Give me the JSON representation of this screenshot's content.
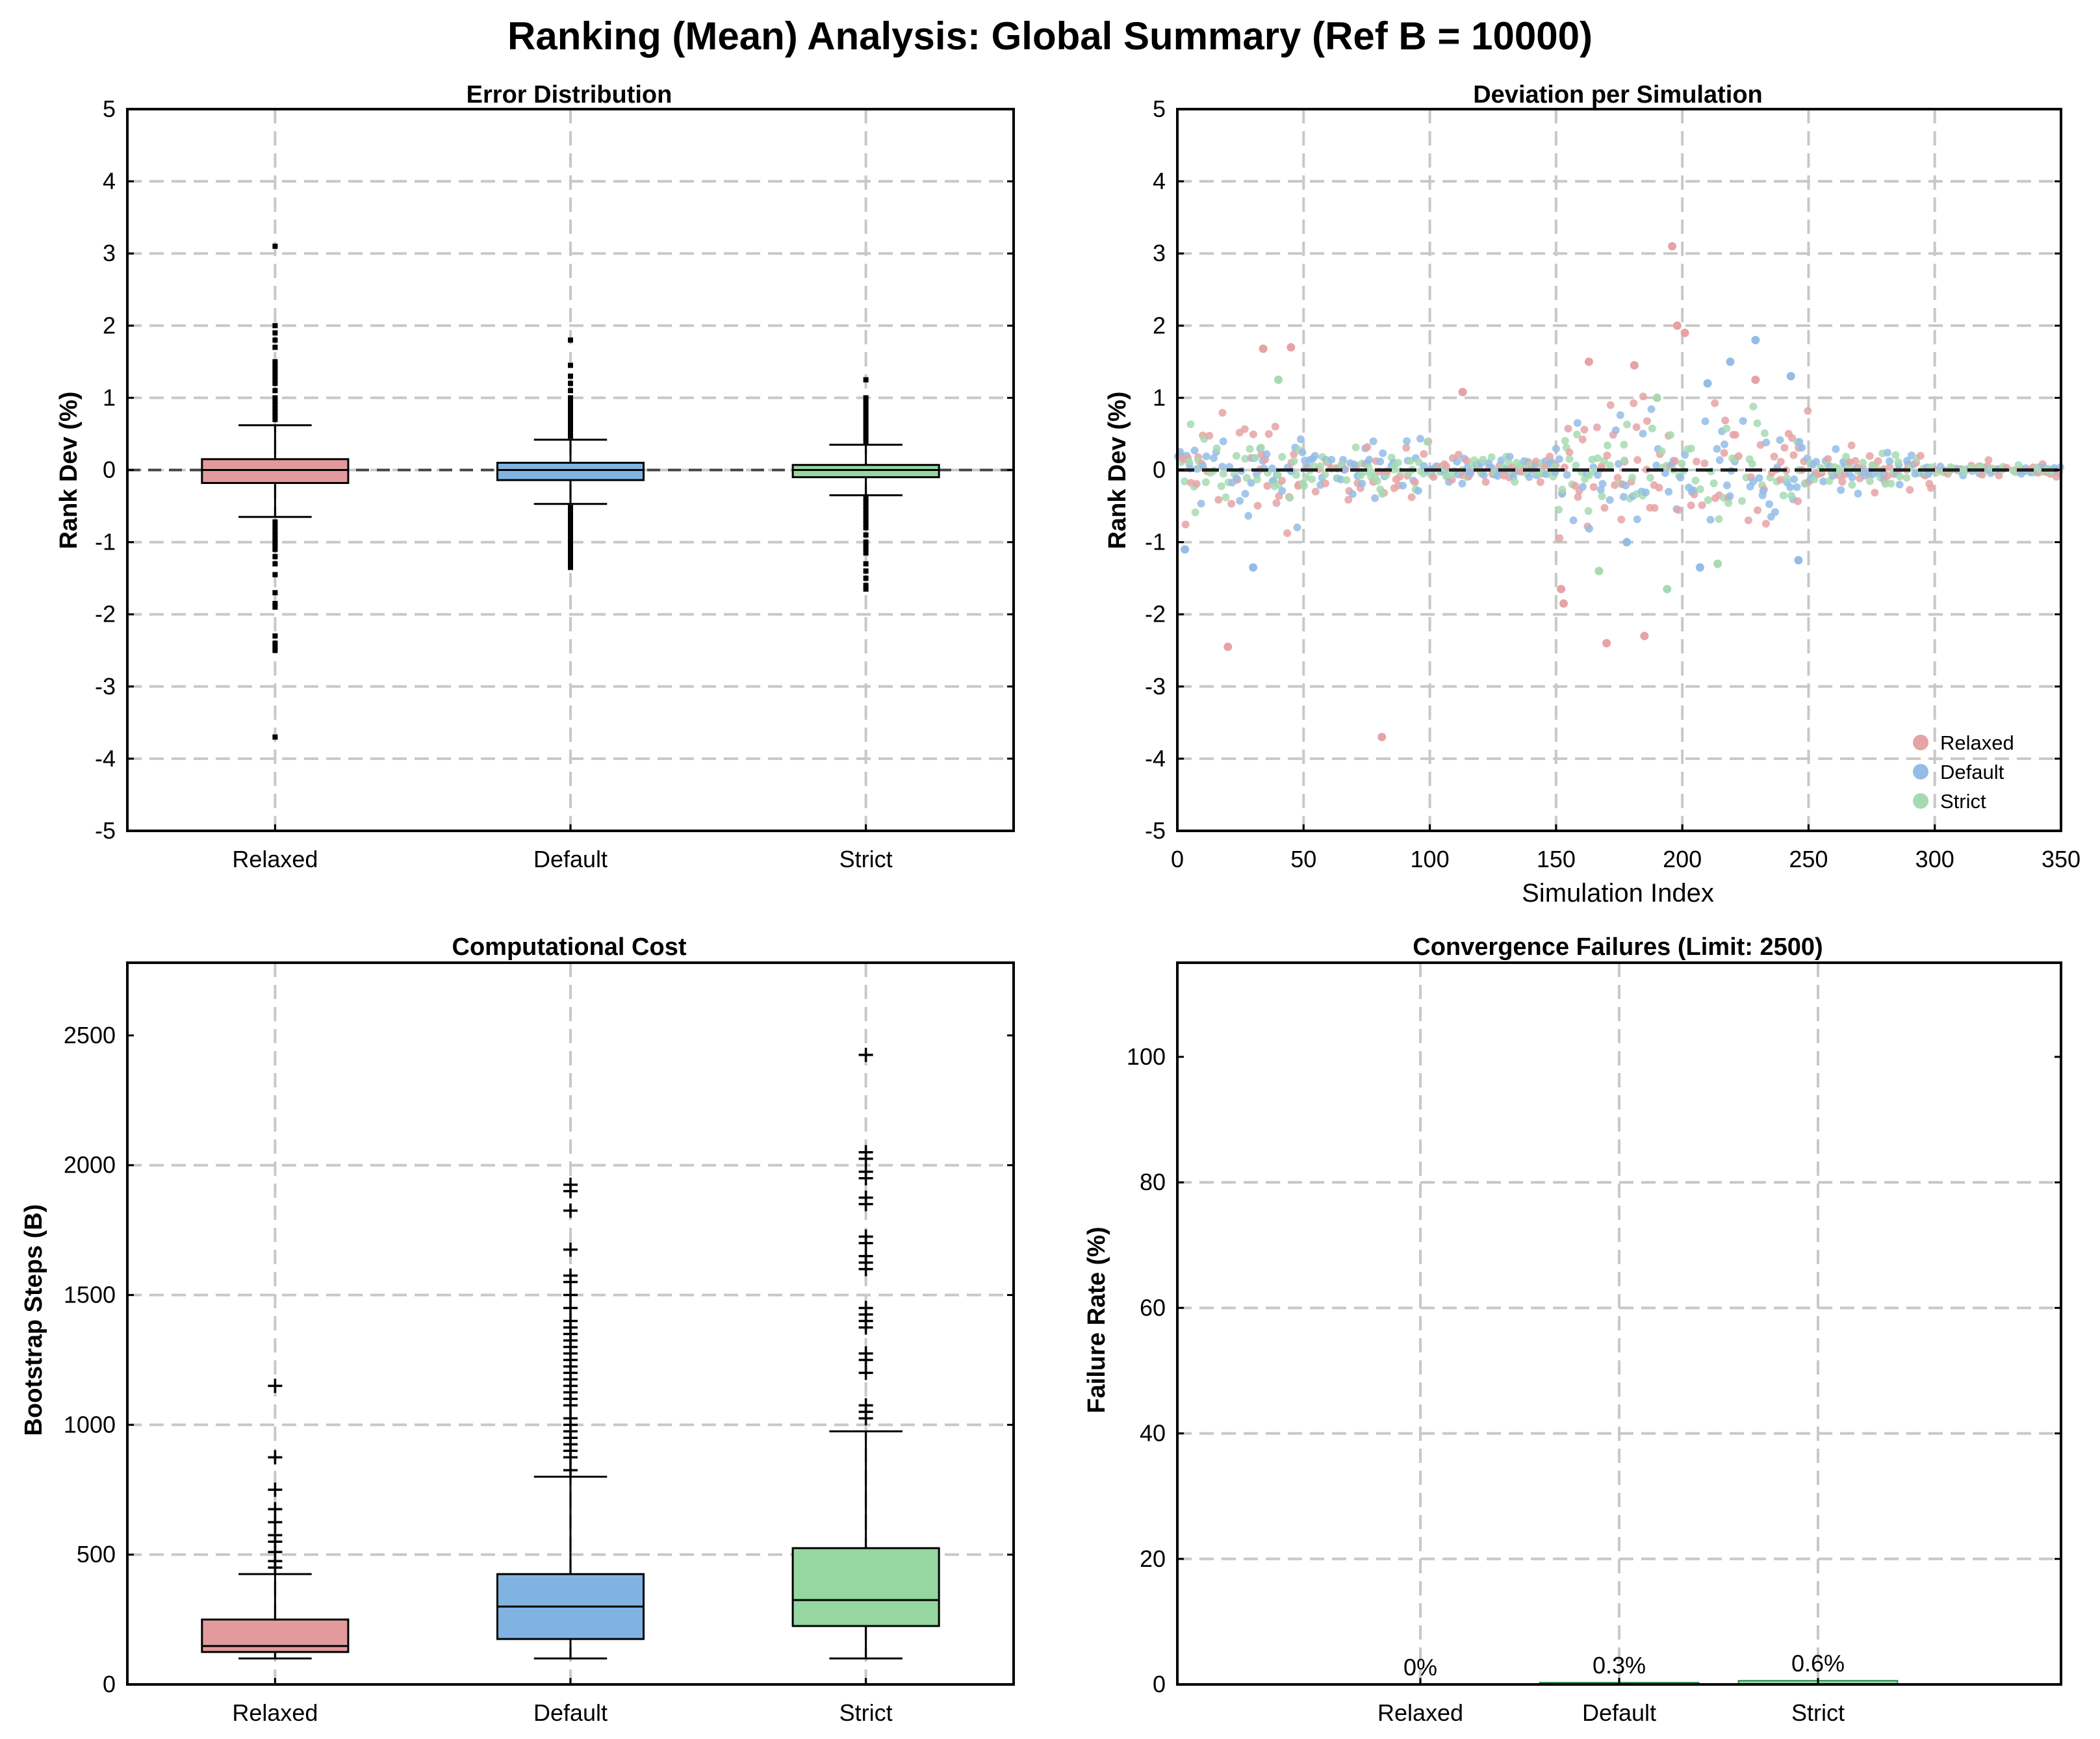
{
  "figure": {
    "title": "Ranking (Mean) Analysis: Global Summary (Ref B = 10000)",
    "colors": {
      "Relaxed": "#e39a9c",
      "Default": "#80b3e2",
      "Strict": "#96d6a0",
      "Relaxed_point": "#e6a3a4",
      "Default_point": "#93bde6",
      "Strict_point": "#a7dab1"
    }
  },
  "chart_data": [
    {
      "id": "error",
      "type": "box",
      "title": "Error Distribution",
      "xlabel": "",
      "ylabel": "Rank Dev (%)",
      "ylim": [
        -5,
        5
      ],
      "yticks": [
        -5,
        -4,
        -3,
        -2,
        -1,
        0,
        1,
        2,
        3,
        4,
        5
      ],
      "categories": [
        "Relaxed",
        "Default",
        "Strict"
      ],
      "reference_line": 0,
      "boxes": [
        {
          "name": "Relaxed",
          "q1": -0.18,
          "median": 0.0,
          "q3": 0.15,
          "whisker_low": -0.65,
          "whisker_high": 0.62,
          "outliers": [
            3.1,
            2.0,
            1.9,
            1.8,
            1.7,
            1.5,
            1.45,
            1.4,
            1.35,
            1.3,
            1.25,
            1.2,
            1.1,
            1.0,
            0.95,
            0.9,
            0.85,
            0.8,
            0.75,
            0.7,
            -0.72,
            -0.78,
            -0.85,
            -0.9,
            -0.95,
            -1.0,
            -1.05,
            -1.1,
            -1.2,
            -1.3,
            -1.45,
            -1.7,
            -1.85,
            -1.9,
            -2.3,
            -2.4,
            -2.45,
            -2.5,
            -3.7
          ]
        },
        {
          "name": "Default",
          "q1": -0.14,
          "median": 0.0,
          "q3": 0.1,
          "whisker_low": -0.47,
          "whisker_high": 0.42,
          "outliers": [
            1.8,
            1.45,
            1.3,
            1.2,
            1.1,
            1.0,
            0.95,
            0.9,
            0.85,
            0.8,
            0.75,
            0.7,
            0.65,
            0.6,
            0.55,
            0.5,
            0.47,
            -0.52,
            -0.55,
            -0.6,
            -0.65,
            -0.7,
            -0.75,
            -0.8,
            -0.85,
            -0.9,
            -0.95,
            -1.0,
            -1.05,
            -1.1,
            -1.15,
            -1.2,
            -1.25,
            -1.3,
            -1.35
          ]
        },
        {
          "name": "Strict",
          "q1": -0.1,
          "median": 0.0,
          "q3": 0.07,
          "whisker_low": -0.35,
          "whisker_high": 0.35,
          "outliers": [
            1.25,
            1.0,
            0.95,
            0.9,
            0.85,
            0.8,
            0.75,
            0.7,
            0.65,
            0.6,
            0.55,
            0.5,
            0.45,
            0.4,
            -0.4,
            -0.45,
            -0.5,
            -0.55,
            -0.6,
            -0.65,
            -0.7,
            -0.75,
            -0.8,
            -0.9,
            -1.0,
            -1.05,
            -1.1,
            -1.15,
            -1.3,
            -1.4,
            -1.5,
            -1.6,
            -1.65
          ]
        }
      ]
    },
    {
      "id": "deviation",
      "type": "scatter",
      "title": "Deviation per Simulation",
      "xlabel": "Simulation Index",
      "ylabel": "Rank Dev (%)",
      "xlim": [
        0,
        350
      ],
      "ylim": [
        -5,
        5
      ],
      "xticks": [
        0,
        50,
        100,
        150,
        200,
        250,
        300,
        350
      ],
      "yticks": [
        -5,
        -4,
        -3,
        -2,
        -1,
        0,
        1,
        2,
        3,
        4,
        5
      ],
      "reference_line": 0,
      "legend": [
        "Relaxed",
        "Default",
        "Strict"
      ],
      "legend_position": "bottom-right",
      "highlighted_points": [
        {
          "series": "Relaxed",
          "x": 196,
          "y": 3.1
        },
        {
          "series": "Relaxed",
          "x": 81,
          "y": -3.7
        },
        {
          "series": "Relaxed",
          "x": 20,
          "y": -2.45
        },
        {
          "series": "Relaxed",
          "x": 45,
          "y": 1.7
        },
        {
          "series": "Relaxed",
          "x": 34,
          "y": 1.68
        },
        {
          "series": "Relaxed",
          "x": 198,
          "y": 2.0
        },
        {
          "series": "Relaxed",
          "x": 201,
          "y": 1.9
        },
        {
          "series": "Relaxed",
          "x": 170,
          "y": -2.4
        },
        {
          "series": "Relaxed",
          "x": 185,
          "y": -2.3
        },
        {
          "series": "Relaxed",
          "x": 152,
          "y": -1.65
        },
        {
          "series": "Relaxed",
          "x": 153,
          "y": -1.85
        },
        {
          "series": "Relaxed",
          "x": 163,
          "y": 1.5
        },
        {
          "series": "Relaxed",
          "x": 181,
          "y": 1.45
        },
        {
          "series": "Relaxed",
          "x": 229,
          "y": 1.25
        },
        {
          "series": "Relaxed",
          "x": 113,
          "y": 1.08
        },
        {
          "series": "Default",
          "x": 229,
          "y": 1.8
        },
        {
          "series": "Default",
          "x": 219,
          "y": 1.5
        },
        {
          "series": "Default",
          "x": 210,
          "y": 1.2
        },
        {
          "series": "Default",
          "x": 243,
          "y": 1.3
        },
        {
          "series": "Default",
          "x": 30,
          "y": -1.35
        },
        {
          "series": "Default",
          "x": 3,
          "y": -1.1
        },
        {
          "series": "Default",
          "x": 207,
          "y": -1.35
        },
        {
          "series": "Default",
          "x": 178,
          "y": -1.0
        },
        {
          "series": "Default",
          "x": 246,
          "y": -1.25
        },
        {
          "series": "Strict",
          "x": 194,
          "y": -1.65
        },
        {
          "series": "Strict",
          "x": 40,
          "y": 1.25
        },
        {
          "series": "Strict",
          "x": 167,
          "y": -1.4
        },
        {
          "series": "Strict",
          "x": 214,
          "y": -1.3
        },
        {
          "series": "Strict",
          "x": 190,
          "y": 1.0
        }
      ]
    },
    {
      "id": "cost",
      "type": "box",
      "title": "Computational Cost",
      "xlabel": "",
      "ylabel": "Bootstrap Steps (B)",
      "ylim": [
        0,
        2780
      ],
      "yticks": [
        0,
        500,
        1000,
        1500,
        2000,
        2500
      ],
      "categories": [
        "Relaxed",
        "Default",
        "Strict"
      ],
      "boxes": [
        {
          "name": "Relaxed",
          "q1": 125,
          "median": 148,
          "q3": 250,
          "whisker_low": 100,
          "whisker_high": 425,
          "outliers": [
            1150,
            875,
            750,
            675,
            625,
            575,
            550,
            510,
            475,
            450
          ]
        },
        {
          "name": "Default",
          "q1": 175,
          "median": 300,
          "q3": 425,
          "whisker_low": 100,
          "whisker_high": 800,
          "outliers": [
            1925,
            1900,
            1825,
            1675,
            1575,
            1550,
            1500,
            1450,
            1400,
            1375,
            1350,
            1325,
            1300,
            1275,
            1250,
            1225,
            1200,
            1175,
            1150,
            1125,
            1100,
            1075,
            1025,
            1000,
            975,
            950,
            925,
            900,
            875,
            825
          ]
        },
        {
          "name": "Strict",
          "q1": 225,
          "median": 325,
          "q3": 525,
          "whisker_low": 100,
          "whisker_high": 975,
          "outliers": [
            2425,
            2050,
            2025,
            1975,
            1950,
            1875,
            1850,
            1725,
            1700,
            1650,
            1625,
            1600,
            1450,
            1425,
            1400,
            1375,
            1275,
            1250,
            1200,
            1075,
            1050,
            1025
          ]
        }
      ]
    },
    {
      "id": "failures",
      "type": "bar",
      "title": "Convergence Failures (Limit: 2500)",
      "xlabel": "",
      "ylabel": "Failure Rate (%)",
      "ylim": [
        0,
        115
      ],
      "yticks": [
        0,
        20,
        40,
        60,
        80,
        100
      ],
      "categories": [
        "Relaxed",
        "Default",
        "Strict"
      ],
      "values": [
        0,
        0.3,
        0.6
      ],
      "value_labels": [
        "0%",
        "0.3%",
        "0.6%"
      ]
    }
  ]
}
